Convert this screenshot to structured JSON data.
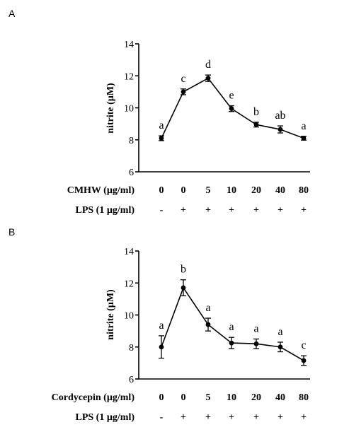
{
  "chart_data": [
    {
      "panel": "A",
      "type": "line",
      "ylabel": "nitrite (µM)",
      "ylim": [
        6,
        14
      ],
      "yticks": [
        "6",
        "8",
        "10",
        "12",
        "14"
      ],
      "treatment_label": "CMHW (µg/ml)",
      "treatment_values": [
        "0",
        "0",
        "5",
        "10",
        "20",
        "40",
        "80"
      ],
      "lps_label": "LPS (1 µg/ml)",
      "lps_values": [
        "-",
        "+",
        "+",
        "+",
        "+",
        "+",
        "+"
      ],
      "values": [
        8.1,
        11.0,
        11.85,
        9.95,
        8.95,
        8.65,
        8.1
      ],
      "errors": [
        0.15,
        0.18,
        0.2,
        0.18,
        0.15,
        0.22,
        0.12
      ],
      "significance": [
        "a",
        "c",
        "d",
        "e",
        "b",
        "ab",
        "a"
      ]
    },
    {
      "panel": "B",
      "type": "line",
      "ylabel": "nitrite (µM)",
      "ylim": [
        6,
        14
      ],
      "yticks": [
        "6",
        "8",
        "10",
        "12",
        "14"
      ],
      "treatment_label": "Cordycepin (µg/ml)",
      "treatment_values": [
        "0",
        "0",
        "5",
        "10",
        "20",
        "40",
        "80"
      ],
      "lps_label": "LPS (1 µg/ml)",
      "lps_values": [
        "-",
        "+",
        "+",
        "+",
        "+",
        "+",
        "+"
      ],
      "values": [
        8.0,
        11.7,
        9.4,
        8.25,
        8.2,
        8.0,
        7.15
      ],
      "errors": [
        0.7,
        0.5,
        0.4,
        0.35,
        0.3,
        0.3,
        0.3
      ],
      "significance": [
        "a",
        "b",
        "a",
        "a",
        "a",
        "a",
        "c"
      ]
    }
  ]
}
